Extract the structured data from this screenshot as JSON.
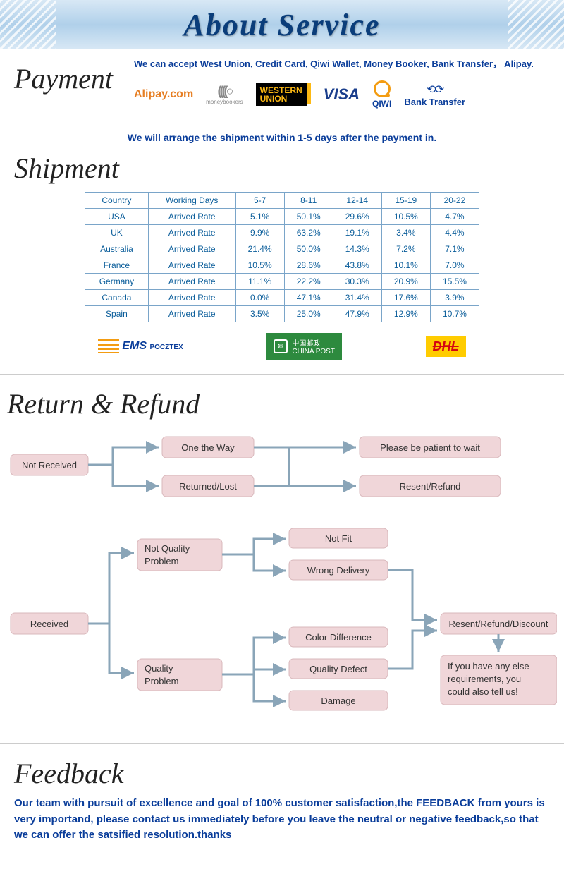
{
  "banner": {
    "title": "About Service"
  },
  "payment": {
    "section_title": "Payment",
    "accept_text": "We can accept West Union, Credit Card, Qiwi Wallet, Money Booker, Bank Transfer， Alipay.",
    "logos": {
      "alipay": "Alipay.com",
      "moneybookers": "moneybookers",
      "western_union_line1": "WESTERN",
      "western_union_line2": "UNION",
      "visa": "VISA",
      "qiwi": "QIWI",
      "bank_transfer": "Bank Transfer"
    }
  },
  "shipment": {
    "section_title": "Shipment",
    "note": "We will arrange the shipment within 1-5 days after the payment in.",
    "table": {
      "columns": [
        "Country",
        "Working Days",
        "5-7",
        "8-11",
        "12-14",
        "15-19",
        "20-22"
      ],
      "rows": [
        [
          "USA",
          "Arrived Rate",
          "5.1%",
          "50.1%",
          "29.6%",
          "10.5%",
          "4.7%"
        ],
        [
          "UK",
          "Arrived Rate",
          "9.9%",
          "63.2%",
          "19.1%",
          "3.4%",
          "4.4%"
        ],
        [
          "Australia",
          "Arrived Rate",
          "21.4%",
          "50.0%",
          "14.3%",
          "7.2%",
          "7.1%"
        ],
        [
          "France",
          "Arrived Rate",
          "10.5%",
          "28.6%",
          "43.8%",
          "10.1%",
          "7.0%"
        ],
        [
          "Germany",
          "Arrived Rate",
          "11.1%",
          "22.2%",
          "30.3%",
          "20.9%",
          "15.5%"
        ],
        [
          "Canada",
          "Arrived Rate",
          "0.0%",
          "47.1%",
          "31.4%",
          "17.6%",
          "3.9%"
        ],
        [
          "Spain",
          "Arrived Rate",
          "3.5%",
          "25.0%",
          "47.9%",
          "12.9%",
          "10.7%"
        ]
      ],
      "border_color": "#7aa5c9",
      "text_color": "#0a5d9a"
    },
    "carriers": {
      "ems": "EMS",
      "ems_sub": "POCZTEX",
      "chinapost_cn": "中国邮政",
      "chinapost_en": "CHINA POST",
      "dhl": "DHL"
    }
  },
  "refund": {
    "section_title": "Return & Refund",
    "flowchart": {
      "box_fill": "#f0d6d9",
      "box_stroke": "#d9b8bc",
      "arrow_color": "#8aa5b8",
      "nodes": {
        "not_received": "Not Received",
        "on_the_way": "One the Way",
        "returned_lost": "Returned/Lost",
        "please_wait": "Please be patient to wait",
        "resent_refund": "Resent/Refund",
        "received": "Received",
        "not_quality": "Not Quality Problem",
        "quality": "Quality Problem",
        "not_fit": "Not Fit",
        "wrong_delivery": "Wrong Delivery",
        "color_diff": "Color Difference",
        "quality_defect": "Quality Defect",
        "damage": "Damage",
        "resent_refund_discount": "Resent/Refund/Discount",
        "else_req": "If you have any else requirements,   you could also tell us!"
      }
    }
  },
  "feedback": {
    "section_title": "Feedback",
    "text": "Our team with pursuit of excellence and goal of 100% customer satisfaction,the FEEDBACK from yours is very importand, please contact us immediately before you leave the neutral or negative feedback,so that we can offer the satsified resolution.thanks"
  }
}
